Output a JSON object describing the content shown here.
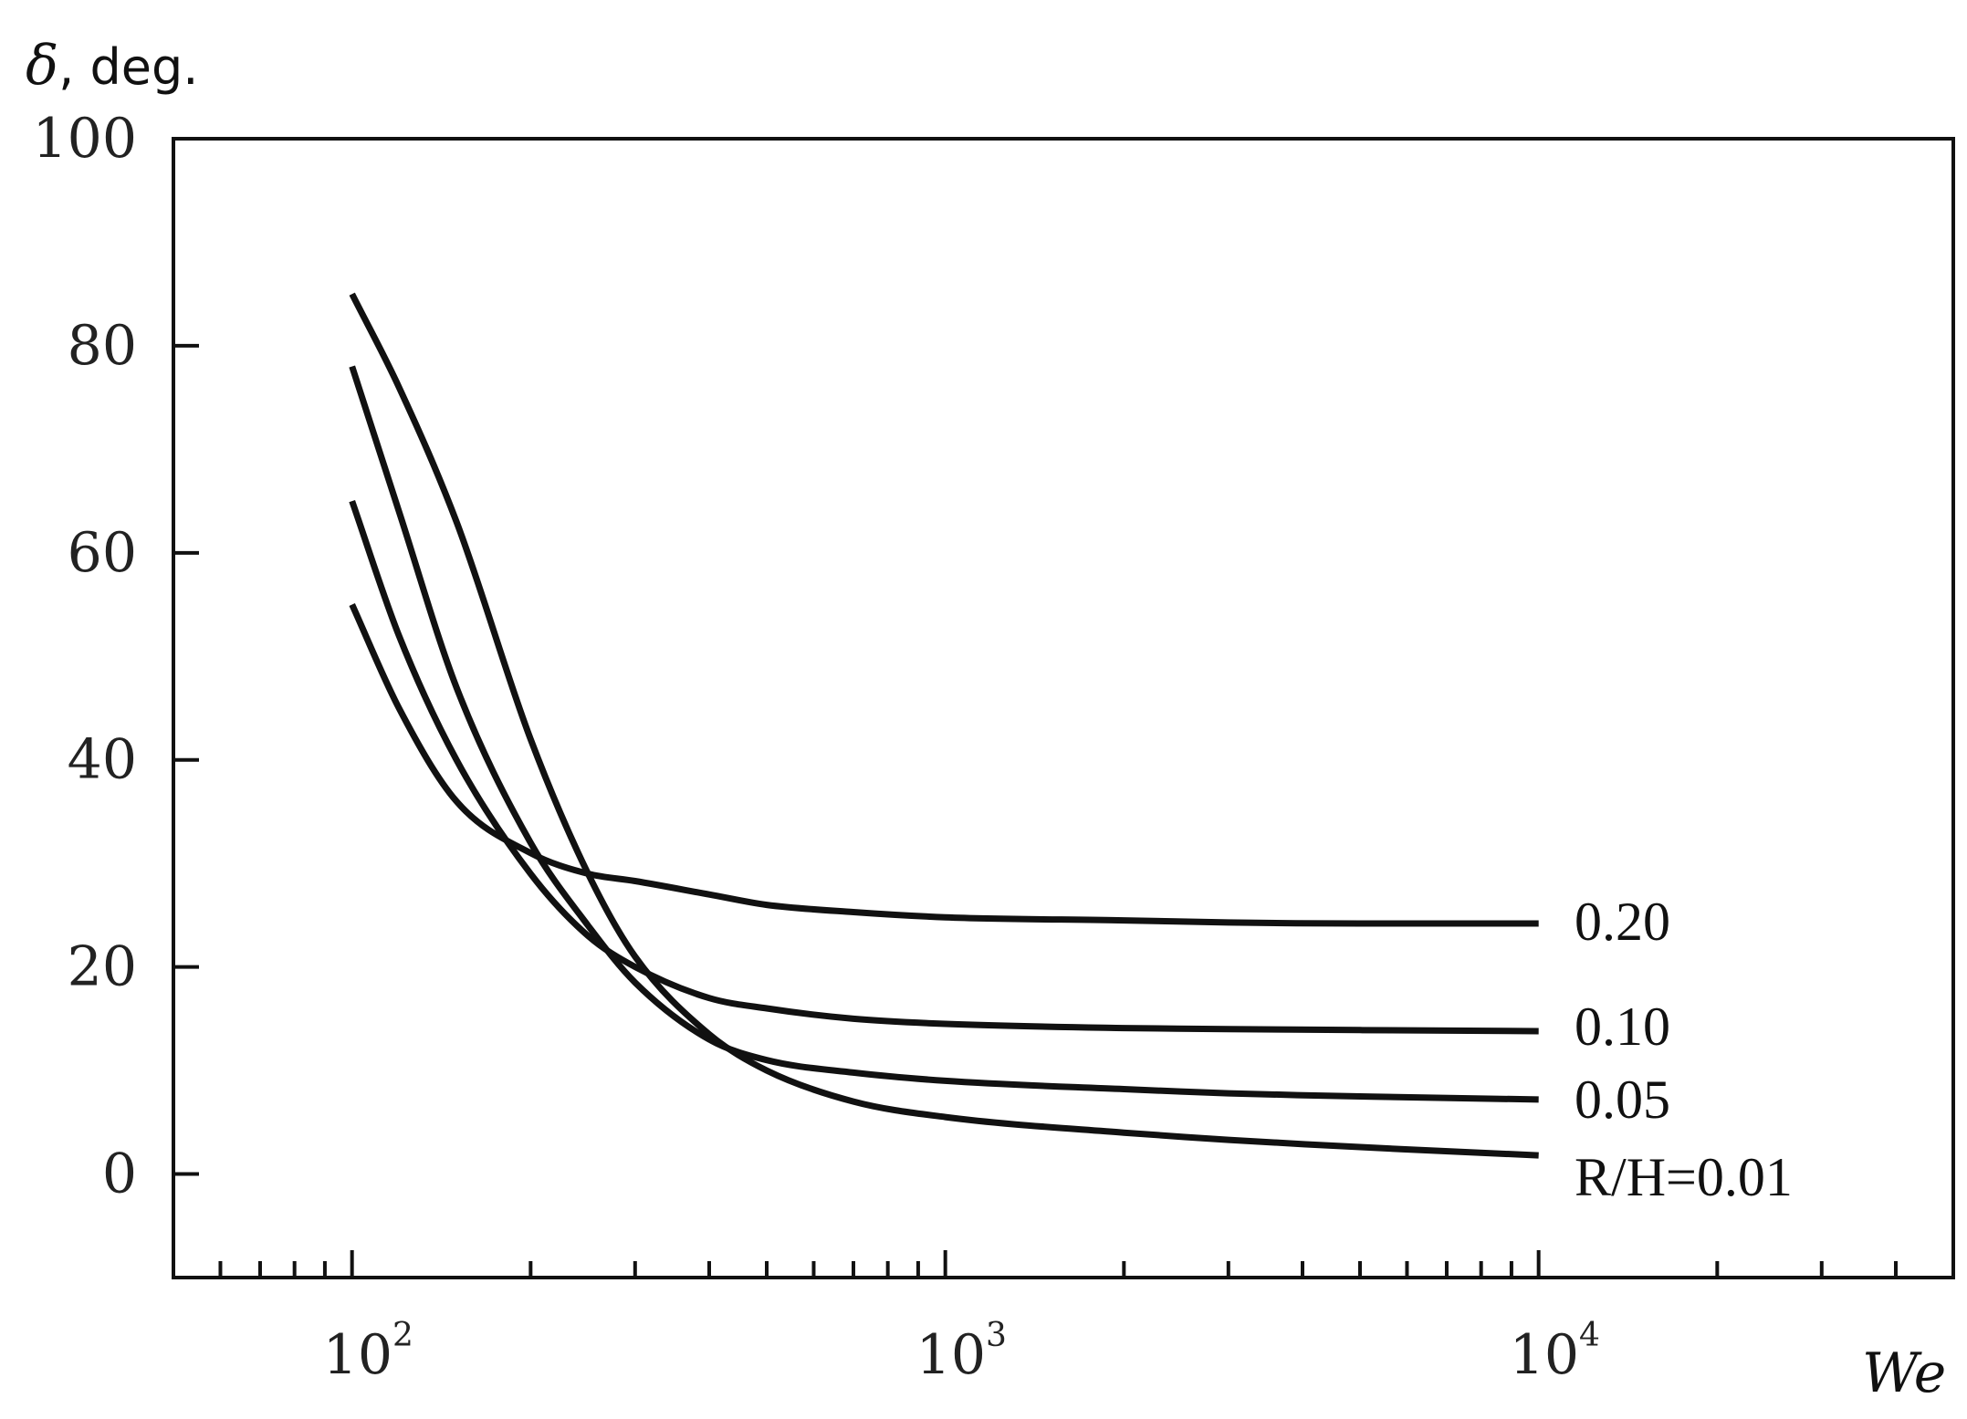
{
  "chart_data": {
    "type": "line",
    "title": "",
    "ylabel": {
      "symbol": "δ",
      "unit": ", deg."
    },
    "xlabel": "We",
    "x_scale": "log",
    "xlim": [
      50,
      50000
    ],
    "ylim": [
      -10,
      100
    ],
    "y_ticks": [
      "100",
      "80",
      "60",
      "40",
      "20",
      "0"
    ],
    "x_ticks": [
      {
        "value": 100,
        "base": "10",
        "exp": "2"
      },
      {
        "value": 1000,
        "base": "10",
        "exp": "3"
      },
      {
        "value": 10000,
        "base": "10",
        "exp": "4"
      }
    ],
    "grid": false,
    "legend": "inline labels at right end of curves",
    "line_color": "#111111",
    "series": [
      {
        "name": "0.20",
        "x": [
          100,
          120,
          150,
          200,
          250,
          300,
          400,
          500,
          700,
          1000,
          2000,
          3000,
          5000,
          10000
        ],
        "y": [
          55,
          45,
          36,
          31,
          29,
          28.3,
          27,
          26,
          25.3,
          24.8,
          24.5,
          24.3,
          24.2,
          24.2
        ]
      },
      {
        "name": "0.10",
        "x": [
          100,
          120,
          150,
          200,
          250,
          300,
          400,
          500,
          700,
          1000,
          2000,
          3000,
          5000,
          10000
        ],
        "y": [
          65,
          52,
          40,
          29,
          23,
          20,
          17,
          16,
          15,
          14.5,
          14.1,
          14,
          13.9,
          13.8
        ]
      },
      {
        "name": "0.05",
        "x": [
          100,
          120,
          150,
          200,
          250,
          300,
          400,
          500,
          700,
          1000,
          2000,
          3000,
          5000,
          10000
        ],
        "y": [
          78,
          64,
          47,
          32,
          24,
          18.5,
          13,
          11,
          9.8,
          9,
          8.2,
          7.8,
          7.5,
          7.2
        ]
      },
      {
        "name": "R/H=0.01",
        "x": [
          100,
          120,
          150,
          200,
          250,
          300,
          400,
          500,
          700,
          1000,
          2000,
          3000,
          5000,
          10000
        ],
        "y": [
          85,
          76,
          63,
          42,
          29,
          21,
          13.5,
          10,
          7,
          5.5,
          4,
          3.3,
          2.6,
          1.8
        ]
      }
    ]
  }
}
